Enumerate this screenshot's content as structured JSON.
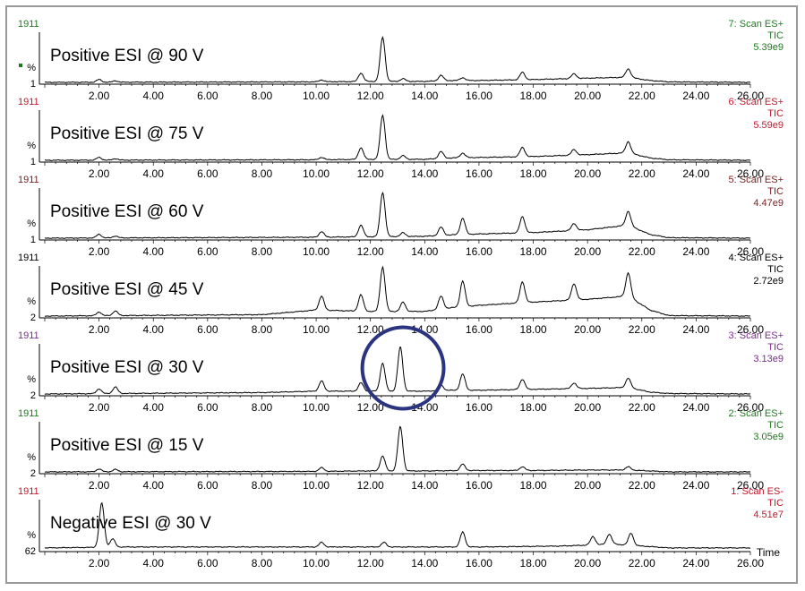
{
  "chart_data": {
    "type": "line",
    "x_axis_label": "Time",
    "xlim": [
      0,
      26
    ],
    "x_ticks": [
      "2.00",
      "4.00",
      "6.00",
      "8.00",
      "10.00",
      "12.00",
      "14.00",
      "16.00",
      "18.00",
      "20.00",
      "22.00",
      "24.00",
      "26.00"
    ],
    "panels": [
      {
        "title": "Positive ESI @ 90 V",
        "top_value": "1911",
        "bottom_value": "1",
        "y_unit": "%",
        "scan": "7: Scan ES+",
        "trace": "TIC",
        "intensity": "5.39e9",
        "color": "#1f7a1f",
        "peaks": [
          [
            2.0,
            6
          ],
          [
            2.6,
            3
          ],
          [
            10.2,
            4
          ],
          [
            11.65,
            18
          ],
          [
            12.45,
            95
          ],
          [
            13.2,
            6
          ],
          [
            14.6,
            12
          ],
          [
            15.4,
            6
          ],
          [
            17.6,
            16
          ],
          [
            19.5,
            10
          ],
          [
            21.5,
            18
          ]
        ],
        "baseline": [
          [
            0,
            2
          ],
          [
            10,
            3
          ],
          [
            12,
            4
          ],
          [
            14,
            4
          ],
          [
            15,
            6
          ],
          [
            16,
            6
          ],
          [
            18,
            8
          ],
          [
            20,
            11
          ],
          [
            21.5,
            13
          ],
          [
            22.3,
            6
          ],
          [
            23,
            3
          ],
          [
            26,
            2
          ]
        ]
      },
      {
        "title": "Positive ESI @ 75 V",
        "top_value": "1911",
        "bottom_value": "1",
        "y_unit": "%",
        "scan": "6: Scan ES+",
        "trace": "TIC",
        "intensity": "5.59e9",
        "color": "#c0182a",
        "peaks": [
          [
            2.0,
            6
          ],
          [
            2.6,
            3
          ],
          [
            10.2,
            5
          ],
          [
            11.65,
            25
          ],
          [
            12.45,
            95
          ],
          [
            13.2,
            8
          ],
          [
            14.6,
            15
          ],
          [
            15.4,
            10
          ],
          [
            17.6,
            20
          ],
          [
            19.5,
            12
          ],
          [
            21.5,
            24
          ]
        ],
        "baseline": [
          [
            0,
            2
          ],
          [
            10,
            3
          ],
          [
            12,
            4
          ],
          [
            14,
            4
          ],
          [
            15,
            7
          ],
          [
            16,
            8
          ],
          [
            18,
            10
          ],
          [
            20,
            14
          ],
          [
            21.5,
            18
          ],
          [
            22.3,
            7
          ],
          [
            23,
            3
          ],
          [
            26,
            2
          ]
        ]
      },
      {
        "title": "Positive ESI @ 60 V",
        "top_value": "1911",
        "bottom_value": "1",
        "y_unit": "%",
        "scan": "5: Scan ES+",
        "trace": "TIC",
        "intensity": "4.47e9",
        "color": "#7a1f1f",
        "peaks": [
          [
            2.0,
            8
          ],
          [
            2.6,
            4
          ],
          [
            10.2,
            12
          ],
          [
            11.65,
            25
          ],
          [
            12.45,
            95
          ],
          [
            13.2,
            8
          ],
          [
            14.6,
            18
          ],
          [
            15.4,
            35
          ],
          [
            17.6,
            35
          ],
          [
            19.5,
            15
          ],
          [
            21.5,
            30
          ]
        ],
        "baseline": [
          [
            0,
            2
          ],
          [
            10,
            4
          ],
          [
            12,
            5
          ],
          [
            14,
            6
          ],
          [
            15,
            9
          ],
          [
            16,
            11
          ],
          [
            18,
            14
          ],
          [
            20,
            20
          ],
          [
            21.5,
            30
          ],
          [
            22.3,
            10
          ],
          [
            23,
            3
          ],
          [
            26,
            2
          ]
        ]
      },
      {
        "title": "Positive ESI @ 45 V",
        "top_value": "1911",
        "bottom_value": "2",
        "y_unit": "%",
        "scan": "4: Scan ES+",
        "trace": "TIC",
        "intensity": "2.72e9",
        "color": "#000000",
        "peaks": [
          [
            2.0,
            8
          ],
          [
            2.6,
            10
          ],
          [
            10.2,
            30
          ],
          [
            11.65,
            35
          ],
          [
            12.45,
            95
          ],
          [
            13.2,
            20
          ],
          [
            14.6,
            28
          ],
          [
            15.4,
            55
          ],
          [
            17.6,
            45
          ],
          [
            19.5,
            35
          ],
          [
            21.5,
            50
          ]
        ],
        "baseline": [
          [
            0,
            2
          ],
          [
            8,
            5
          ],
          [
            10,
            15
          ],
          [
            12,
            12
          ],
          [
            14,
            12
          ],
          [
            15,
            20
          ],
          [
            16,
            25
          ],
          [
            18,
            32
          ],
          [
            20,
            38
          ],
          [
            21.5,
            45
          ],
          [
            22.3,
            15
          ],
          [
            23,
            3
          ],
          [
            26,
            2
          ]
        ]
      },
      {
        "title": "Positive ESI @ 30 V",
        "top_value": "1911",
        "bottom_value": "2",
        "y_unit": "%",
        "scan": "3: Scan ES+",
        "trace": "TIC",
        "intensity": "3.13e9",
        "color": "#7a2d8a",
        "peaks": [
          [
            2.0,
            10
          ],
          [
            2.6,
            14
          ],
          [
            10.2,
            22
          ],
          [
            11.65,
            18
          ],
          [
            12.45,
            60
          ],
          [
            13.1,
            95
          ],
          [
            14.6,
            12
          ],
          [
            15.4,
            35
          ],
          [
            17.6,
            22
          ],
          [
            19.5,
            12
          ],
          [
            21.5,
            20
          ]
        ],
        "baseline": [
          [
            0,
            2
          ],
          [
            8,
            5
          ],
          [
            10,
            8
          ],
          [
            12,
            8
          ],
          [
            14,
            8
          ],
          [
            15,
            10
          ],
          [
            16,
            10
          ],
          [
            18,
            12
          ],
          [
            20,
            14
          ],
          [
            21.5,
            16
          ],
          [
            22.3,
            6
          ],
          [
            23,
            3
          ],
          [
            26,
            2
          ]
        ]
      },
      {
        "title": "Positive ESI @ 15 V",
        "top_value": "1911",
        "bottom_value": "2",
        "y_unit": "%",
        "scan": "2: Scan ES+",
        "trace": "TIC",
        "intensity": "3.05e9",
        "color": "#1f7a1f",
        "peaks": [
          [
            2.0,
            6
          ],
          [
            2.6,
            5
          ],
          [
            10.2,
            8
          ],
          [
            12.45,
            32
          ],
          [
            13.1,
            95
          ],
          [
            15.4,
            14
          ],
          [
            17.6,
            8
          ],
          [
            21.5,
            7
          ]
        ],
        "baseline": [
          [
            0,
            2
          ],
          [
            10,
            3
          ],
          [
            12,
            4
          ],
          [
            14,
            4
          ],
          [
            16,
            5
          ],
          [
            18,
            5
          ],
          [
            20,
            6
          ],
          [
            21.5,
            6
          ],
          [
            22.3,
            4
          ],
          [
            23,
            2
          ],
          [
            26,
            2
          ]
        ]
      },
      {
        "title": "Negative ESI @ 30 V",
        "top_value": "1911",
        "bottom_value": "62",
        "y_unit": "%",
        "scan": "1: Scan ES-",
        "trace": "TIC",
        "intensity": "4.51e7",
        "color": "#c0182a",
        "peaks": [
          [
            2.1,
            95
          ],
          [
            2.5,
            18
          ],
          [
            10.2,
            10
          ],
          [
            12.5,
            10
          ],
          [
            15.4,
            32
          ],
          [
            20.2,
            18
          ],
          [
            20.8,
            22
          ],
          [
            21.6,
            26
          ]
        ],
        "baseline": [
          [
            0,
            6
          ],
          [
            3,
            8
          ],
          [
            10,
            8
          ],
          [
            14,
            8
          ],
          [
            16,
            8
          ],
          [
            19,
            10
          ],
          [
            21,
            14
          ],
          [
            22,
            10
          ],
          [
            23,
            6
          ],
          [
            26,
            6
          ]
        ]
      }
    ]
  },
  "highlight": {
    "shape": "circle",
    "color": "#2b3480",
    "around_panel": "Positive ESI @ 30 V",
    "x_range": [
      11.7,
      14.7
    ]
  }
}
